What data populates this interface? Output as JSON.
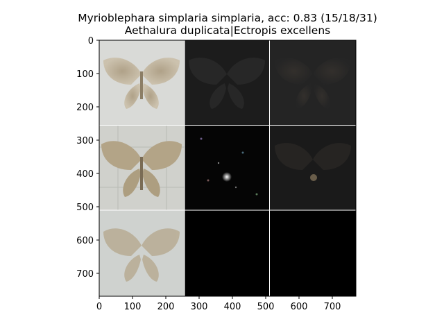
{
  "figure": {
    "title_line1": "Myrioblephara simplaria simplaria, acc: 0.83 (15/18/31)",
    "title_line2": "Aethalura duplicata|Ectropis excellens"
  },
  "axes": {
    "y_ticks": [
      "0",
      "100",
      "200",
      "300",
      "400",
      "500",
      "600",
      "700"
    ],
    "x_ticks": [
      "0",
      "100",
      "200",
      "300",
      "400",
      "500",
      "600",
      "700"
    ]
  },
  "grid": {
    "rows": 3,
    "cols": 3,
    "tiles": [
      [
        "moth-original",
        "saliency-map-dim",
        "saliency-overlay"
      ],
      [
        "moth-original-sharp",
        "saliency-map-speckled",
        "saliency-overlay-dark"
      ],
      [
        "moth-reconstruction-blurred",
        "empty-black",
        "empty-black"
      ]
    ]
  },
  "colors": {
    "panel_light": "#d8d9d6",
    "panel_dark": "#1a1a1a",
    "black": "#000000",
    "moth_wing": "#b5a588",
    "grid_line": "#ffffff"
  }
}
